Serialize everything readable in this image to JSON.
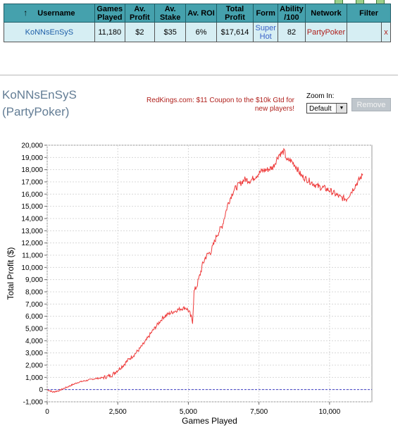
{
  "table": {
    "headers": [
      {
        "key": "username",
        "label_lines": [
          "Username"
        ]
      },
      {
        "key": "games",
        "label_lines": [
          "Games",
          "Played"
        ]
      },
      {
        "key": "avprofit",
        "label_lines": [
          "Av.",
          "Profit"
        ]
      },
      {
        "key": "avstake",
        "label_lines": [
          "Av.",
          "Stake"
        ]
      },
      {
        "key": "avroi",
        "label_lines": [
          "Av. ROI"
        ]
      },
      {
        "key": "total",
        "label_lines": [
          "Total",
          "Profit"
        ]
      },
      {
        "key": "form",
        "label_lines": [
          "Form"
        ]
      },
      {
        "key": "ability",
        "label_lines": [
          "Ability",
          "/100"
        ]
      },
      {
        "key": "network",
        "label_lines": [
          "Network"
        ]
      },
      {
        "key": "filter",
        "label_lines": [
          "Filter"
        ]
      }
    ],
    "row": {
      "username": "KoNNsEnSyS",
      "games": "11,180",
      "avprofit": "$2",
      "avstake": "$35",
      "avroi": "6%",
      "total": "$17,614",
      "form_lines": [
        "Super",
        "Hot"
      ],
      "ability": "82",
      "network": "PartyPoker",
      "filter": "",
      "remove": "x"
    }
  },
  "player": {
    "name": "KoNNsEnSyS",
    "network": "(PartyPoker)"
  },
  "promo": {
    "line1": "RedKings.com: $11 Coupon to the $10k Gtd for",
    "line2": "new players!"
  },
  "zoom": {
    "label": "Zoom In:",
    "selected": "Default",
    "arrow_icon": "▼"
  },
  "remove_button": "Remove",
  "colors": {
    "header_bg": "#45a1ad",
    "row_bg": "#d6eef3",
    "line": "#ee3a3a",
    "zero_line": "#4040c8"
  },
  "chart_data": {
    "type": "line",
    "xlabel": "Games Played",
    "ylabel": "Total Profit ($)",
    "xlim": [
      0,
      11500
    ],
    "ylim": [
      -1000,
      20000
    ],
    "xticks": [
      0,
      2500,
      5000,
      7500,
      10000
    ],
    "xtick_labels": [
      "0",
      "2,500",
      "5,000",
      "7,500",
      "10,000"
    ],
    "yticks": [
      -1000,
      0,
      1000,
      2000,
      3000,
      4000,
      5000,
      6000,
      7000,
      8000,
      9000,
      10000,
      11000,
      12000,
      13000,
      14000,
      15000,
      16000,
      17000,
      18000,
      19000,
      20000
    ],
    "ytick_labels": [
      "-1,000",
      "0",
      "1,000",
      "2,000",
      "3,000",
      "4,000",
      "5,000",
      "6,000",
      "7,000",
      "8,000",
      "9,000",
      "10,000",
      "11,000",
      "12,000",
      "13,000",
      "14,000",
      "15,000",
      "16,000",
      "17,000",
      "18,000",
      "19,000",
      "20,000"
    ],
    "grid": true,
    "series": [
      {
        "values_x": [
          0,
          100,
          200,
          300,
          400,
          500,
          700,
          900,
          1100,
          1300,
          1500,
          1700,
          1900,
          2100,
          2300,
          2500,
          2700,
          2900,
          3100,
          3300,
          3500,
          3700,
          3900,
          4100,
          4300,
          4500,
          4700,
          4900,
          5000,
          5080,
          5150,
          5200,
          5300,
          5400,
          5500,
          5600,
          5700,
          5800,
          5900,
          6000,
          6200,
          6400,
          6600,
          6800,
          7000,
          7200,
          7400,
          7600,
          7800,
          8000,
          8200,
          8400,
          8500,
          8600,
          8800,
          9000,
          9200,
          9400,
          9600,
          9800,
          10000,
          10200,
          10400,
          10600,
          10800,
          11000,
          11180
        ],
        "values_y": [
          0,
          -100,
          -200,
          -150,
          -100,
          0,
          200,
          400,
          600,
          700,
          800,
          900,
          950,
          1050,
          1200,
          1600,
          2000,
          2500,
          2900,
          3400,
          4000,
          4700,
          5300,
          5900,
          6200,
          6400,
          6600,
          6700,
          6500,
          6000,
          5600,
          8000,
          8500,
          9300,
          10200,
          10800,
          11100,
          11300,
          11900,
          12600,
          13400,
          15200,
          16300,
          16800,
          17200,
          17100,
          17500,
          17900,
          18000,
          18200,
          19200,
          19500,
          18700,
          18800,
          18300,
          17500,
          17200,
          16900,
          16600,
          16500,
          16300,
          16000,
          15700,
          15600,
          16300,
          17000,
          17614
        ]
      }
    ]
  }
}
